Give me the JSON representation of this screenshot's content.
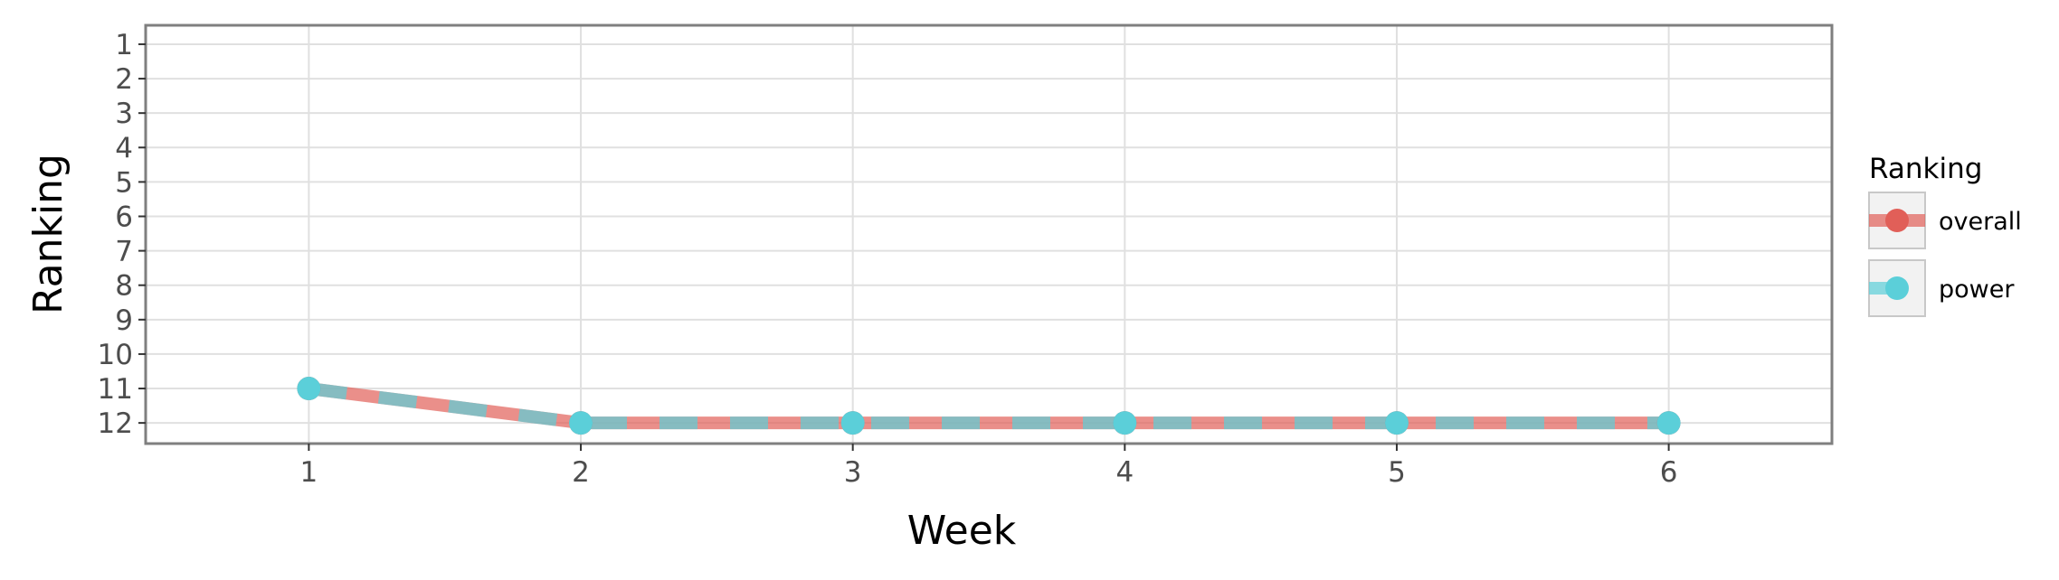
{
  "chart_data": {
    "type": "line",
    "xlabel": "Week",
    "ylabel": "Ranking",
    "x": [
      1,
      2,
      3,
      4,
      5,
      6
    ],
    "x_ticks": [
      "1",
      "2",
      "3",
      "4",
      "5",
      "6"
    ],
    "y_ticks": [
      "1",
      "2",
      "3",
      "4",
      "5",
      "6",
      "7",
      "8",
      "9",
      "10",
      "11",
      "12"
    ],
    "xlim": [
      0.4,
      6.6
    ],
    "ylim": [
      12.6,
      0.45
    ],
    "y_reversed": true,
    "grid": true,
    "legend": {
      "title": "Ranking",
      "position": "right"
    },
    "series": [
      {
        "name": "overall",
        "values": [
          11,
          12,
          12,
          12,
          12,
          12
        ],
        "color": "#e15f58",
        "line_style": "solid"
      },
      {
        "name": "power",
        "values": [
          11,
          12,
          12,
          12,
          12,
          12
        ],
        "color": "#5bcfd9",
        "line_style": "dashed"
      }
    ]
  }
}
